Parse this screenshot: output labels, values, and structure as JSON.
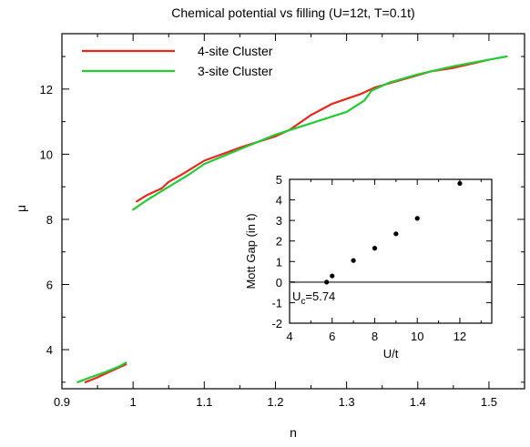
{
  "chart_data": [
    {
      "type": "line",
      "title": "Chemical potential vs filling (U=12t, T=0.1t)",
      "xlabel": "n",
      "ylabel": "μ",
      "xlim": [
        0.9,
        1.55
      ],
      "ylim": [
        2.8,
        13.7
      ],
      "xticks": [
        0.9,
        1.0,
        1.1,
        1.2,
        1.3,
        1.4,
        1.5
      ],
      "xtick_labels": [
        "0.9",
        "1",
        "1.1",
        "1.2",
        "1.3",
        "1.4",
        "1.5"
      ],
      "yticks": [
        4,
        6,
        8,
        10,
        12
      ],
      "ytick_labels": [
        "4",
        "6",
        "8",
        "10",
        "12"
      ],
      "grid": false,
      "legend": "top-left",
      "series": [
        {
          "name": "4-site Cluster",
          "color": "#e8281e",
          "segments": [
            [
              [
                0.933,
                3.0
              ],
              [
                0.95,
                3.15
              ],
              [
                0.97,
                3.35
              ],
              [
                0.99,
                3.55
              ]
            ],
            [
              [
                1.005,
                8.55
              ],
              [
                1.02,
                8.75
              ],
              [
                1.04,
                8.95
              ],
              [
                1.05,
                9.15
              ],
              [
                1.07,
                9.4
              ],
              [
                1.1,
                9.8
              ],
              [
                1.15,
                10.2
              ],
              [
                1.2,
                10.55
              ],
              [
                1.22,
                10.75
              ],
              [
                1.25,
                11.2
              ],
              [
                1.28,
                11.55
              ],
              [
                1.32,
                11.85
              ],
              [
                1.34,
                12.05
              ],
              [
                1.38,
                12.3
              ],
              [
                1.42,
                12.55
              ],
              [
                1.45,
                12.65
              ],
              [
                1.5,
                12.9
              ]
            ]
          ]
        },
        {
          "name": "3-site Cluster",
          "color": "#22cc33",
          "segments": [
            [
              [
                0.922,
                3.0
              ],
              [
                0.94,
                3.15
              ],
              [
                0.96,
                3.3
              ],
              [
                0.98,
                3.48
              ],
              [
                0.99,
                3.6
              ]
            ],
            [
              [
                1.0,
                8.3
              ],
              [
                1.02,
                8.6
              ],
              [
                1.05,
                9.0
              ],
              [
                1.08,
                9.4
              ],
              [
                1.1,
                9.7
              ],
              [
                1.15,
                10.15
              ],
              [
                1.2,
                10.6
              ],
              [
                1.25,
                10.95
              ],
              [
                1.3,
                11.3
              ],
              [
                1.325,
                11.65
              ],
              [
                1.335,
                11.95
              ],
              [
                1.36,
                12.2
              ],
              [
                1.4,
                12.45
              ],
              [
                1.45,
                12.7
              ],
              [
                1.5,
                12.9
              ],
              [
                1.525,
                13.0
              ]
            ]
          ]
        }
      ]
    },
    {
      "type": "scatter",
      "xlabel": "U/t",
      "ylabel": "Mott Gap (in t)",
      "xlim": [
        4,
        13.5
      ],
      "ylim": [
        -2,
        5
      ],
      "xticks": [
        4,
        6,
        8,
        10,
        12
      ],
      "xtick_labels": [
        "4",
        "6",
        "8",
        "10",
        "12"
      ],
      "yticks": [
        -2,
        -1,
        0,
        1,
        2,
        3,
        4,
        5
      ],
      "ytick_labels": [
        "-2",
        "-1",
        "0",
        "1",
        "2",
        "3",
        "4",
        "5"
      ],
      "reference_line": 0,
      "annotation": {
        "main": "U",
        "sub": "c",
        "rest": "=5.74"
      },
      "points": [
        {
          "x": 5.74,
          "y": 0.0
        },
        {
          "x": 6.0,
          "y": 0.3
        },
        {
          "x": 7.0,
          "y": 1.05
        },
        {
          "x": 8.0,
          "y": 1.65
        },
        {
          "x": 9.0,
          "y": 2.35
        },
        {
          "x": 10.0,
          "y": 3.1
        },
        {
          "x": 12.0,
          "y": 4.8
        }
      ]
    }
  ]
}
